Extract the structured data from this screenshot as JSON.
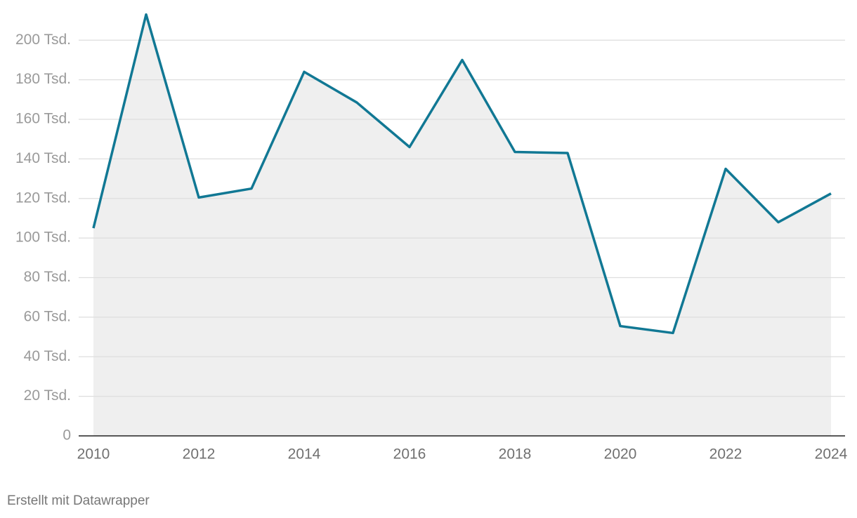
{
  "chart_data": {
    "type": "line",
    "x": [
      2010,
      2011,
      2012,
      2013,
      2014,
      2015,
      2016,
      2017,
      2018,
      2019,
      2020,
      2021,
      2022,
      2023,
      2024
    ],
    "values": [
      105000,
      213000,
      120500,
      125000,
      184000,
      168500,
      146000,
      190000,
      143500,
      143000,
      55500,
      52000,
      135000,
      108000,
      122500
    ],
    "color": "#117894",
    "area_color": "#efefef",
    "xlim": [
      2010,
      2024
    ],
    "xticks": [
      2010,
      2012,
      2014,
      2016,
      2018,
      2020,
      2022,
      2024
    ],
    "ylim": [
      0,
      215000
    ],
    "yticks": [
      0,
      {
        "value": 20000,
        "label": "20 Tsd."
      },
      {
        "value": 40000,
        "label": "40 Tsd."
      },
      {
        "value": 60000,
        "label": "60 Tsd."
      },
      {
        "value": 80000,
        "label": "80 Tsd."
      },
      {
        "value": 100000,
        "label": "100 Tsd."
      },
      {
        "value": 120000,
        "label": "120 Tsd."
      },
      {
        "value": 140000,
        "label": "140 Tsd."
      },
      {
        "value": 160000,
        "label": "160 Tsd."
      },
      {
        "value": 180000,
        "label": "180 Tsd."
      },
      {
        "value": 200000,
        "label": "200 Tsd."
      }
    ],
    "grid": true,
    "footer": "Erstellt mit Datawrapper"
  }
}
